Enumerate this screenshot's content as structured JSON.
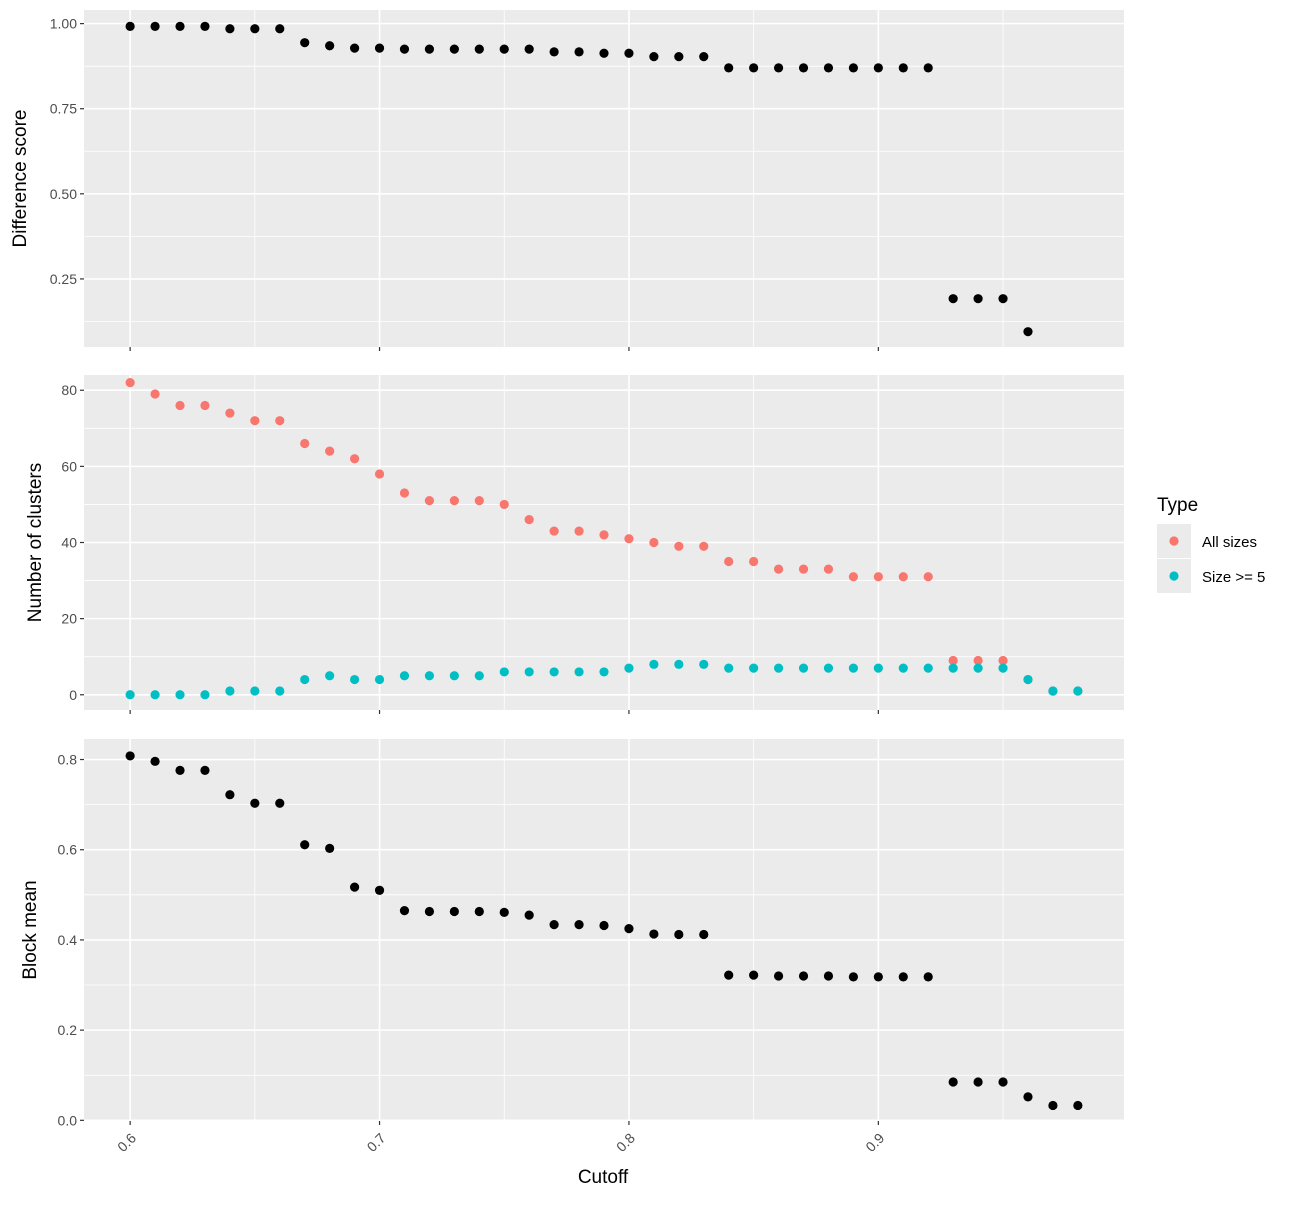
{
  "chart_data": {
    "type": "scatter",
    "x_label": "Cutoff",
    "x_ticks": [
      0.6,
      0.7,
      0.8,
      0.9
    ],
    "x_range": [
      0.5815,
      0.9985
    ],
    "legend": {
      "title": "Type",
      "placement": "right",
      "entries": [
        {
          "label": "All sizes",
          "color": "#F8766D"
        },
        {
          "label": "Size >= 5",
          "color": "#00BFC4"
        }
      ]
    },
    "panels": [
      {
        "id": "difference",
        "ylabel": "Difference score",
        "ylim": [
          0.05,
          1.04
        ],
        "y_ticks": [
          0.25,
          0.5,
          0.75,
          1.0
        ],
        "y_tick_labels": [
          "0.25",
          "0.50",
          "0.75",
          "1.00"
        ],
        "y_minor": [
          0.125,
          0.375,
          0.625,
          0.875
        ],
        "series": [
          {
            "color": "#000000",
            "x": [
              0.6,
              0.61,
              0.62,
              0.63,
              0.64,
              0.65,
              0.66,
              0.67,
              0.68,
              0.69,
              0.7,
              0.71,
              0.72,
              0.73,
              0.74,
              0.75,
              0.76,
              0.77,
              0.78,
              0.79,
              0.8,
              0.81,
              0.82,
              0.83,
              0.84,
              0.85,
              0.86,
              0.87,
              0.88,
              0.89,
              0.9,
              0.91,
              0.92,
              0.93,
              0.94,
              0.95,
              0.96
            ],
            "y": [
              0.992,
              0.992,
              0.992,
              0.992,
              0.985,
              0.985,
              0.985,
              0.944,
              0.935,
              0.928,
              0.928,
              0.925,
              0.925,
              0.925,
              0.925,
              0.925,
              0.925,
              0.917,
              0.917,
              0.913,
              0.913,
              0.903,
              0.903,
              0.903,
              0.87,
              0.87,
              0.87,
              0.87,
              0.87,
              0.87,
              0.87,
              0.87,
              0.87,
              0.192,
              0.192,
              0.192,
              0.095
            ]
          }
        ]
      },
      {
        "id": "clusters",
        "ylabel": "Number of clusters",
        "ylim": [
          -4,
          84
        ],
        "y_ticks": [
          0,
          20,
          40,
          60,
          80
        ],
        "y_tick_labels": [
          "0",
          "20",
          "40",
          "60",
          "80"
        ],
        "y_minor": [
          10,
          30,
          50,
          70
        ],
        "series": [
          {
            "name": "All sizes",
            "color": "#F8766D",
            "x": [
              0.6,
              0.61,
              0.62,
              0.63,
              0.64,
              0.65,
              0.66,
              0.67,
              0.68,
              0.69,
              0.7,
              0.71,
              0.72,
              0.73,
              0.74,
              0.75,
              0.76,
              0.77,
              0.78,
              0.79,
              0.8,
              0.81,
              0.82,
              0.83,
              0.84,
              0.85,
              0.86,
              0.87,
              0.88,
              0.89,
              0.9,
              0.91,
              0.92,
              0.93,
              0.94,
              0.95,
              0.96,
              0.97,
              0.98
            ],
            "y": [
              82,
              79,
              76,
              76,
              74,
              72,
              72,
              66,
              64,
              62,
              58,
              53,
              51,
              51,
              51,
              50,
              46,
              43,
              43,
              42,
              41,
              40,
              39,
              39,
              35,
              35,
              33,
              33,
              33,
              31,
              31,
              31,
              31,
              9,
              9,
              9,
              4,
              1,
              1
            ]
          },
          {
            "name": "Size >= 5",
            "color": "#00BFC4",
            "x": [
              0.6,
              0.61,
              0.62,
              0.63,
              0.64,
              0.65,
              0.66,
              0.67,
              0.68,
              0.69,
              0.7,
              0.71,
              0.72,
              0.73,
              0.74,
              0.75,
              0.76,
              0.77,
              0.78,
              0.79,
              0.8,
              0.81,
              0.82,
              0.83,
              0.84,
              0.85,
              0.86,
              0.87,
              0.88,
              0.89,
              0.9,
              0.91,
              0.92,
              0.93,
              0.94,
              0.95,
              0.96,
              0.97,
              0.98
            ],
            "y": [
              0,
              0,
              0,
              0,
              1,
              1,
              1,
              4,
              5,
              4,
              4,
              5,
              5,
              5,
              5,
              6,
              6,
              6,
              6,
              6,
              7,
              8,
              8,
              8,
              7,
              7,
              7,
              7,
              7,
              7,
              7,
              7,
              7,
              7,
              7,
              7,
              4,
              1,
              1
            ]
          }
        ]
      },
      {
        "id": "blockmean",
        "ylabel": "Block mean",
        "ylim": [
          -0.0015,
          0.8455
        ],
        "y_ticks": [
          0.0,
          0.2,
          0.4,
          0.6,
          0.8
        ],
        "y_tick_labels": [
          "0.0",
          "0.2",
          "0.4",
          "0.6",
          "0.8"
        ],
        "y_minor": [
          0.1,
          0.3,
          0.5,
          0.7
        ],
        "series": [
          {
            "color": "#000000",
            "x": [
              0.6,
              0.61,
              0.62,
              0.63,
              0.64,
              0.65,
              0.66,
              0.67,
              0.68,
              0.69,
              0.7,
              0.71,
              0.72,
              0.73,
              0.74,
              0.75,
              0.76,
              0.77,
              0.78,
              0.79,
              0.8,
              0.81,
              0.82,
              0.83,
              0.84,
              0.85,
              0.86,
              0.87,
              0.88,
              0.89,
              0.9,
              0.91,
              0.92,
              0.93,
              0.94,
              0.95,
              0.96,
              0.97,
              0.98
            ],
            "y": [
              0.808,
              0.796,
              0.776,
              0.776,
              0.722,
              0.703,
              0.703,
              0.611,
              0.603,
              0.517,
              0.51,
              0.465,
              0.463,
              0.463,
              0.463,
              0.461,
              0.455,
              0.434,
              0.434,
              0.432,
              0.425,
              0.413,
              0.412,
              0.412,
              0.322,
              0.322,
              0.32,
              0.32,
              0.32,
              0.318,
              0.318,
              0.318,
              0.318,
              0.085,
              0.085,
              0.085,
              0.052,
              0.033,
              0.033
            ]
          }
        ]
      }
    ]
  }
}
